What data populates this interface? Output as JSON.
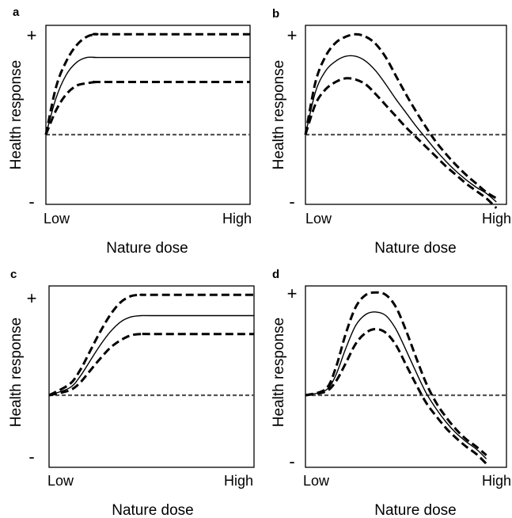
{
  "chart_data": [
    {
      "panel": "a",
      "type": "line",
      "xlabel": "Nature dose",
      "ylabel": "Health response",
      "x_tick_labels": [
        "Low",
        "High"
      ],
      "y_tick_labels": [
        "+",
        "-"
      ],
      "xlim": [
        0,
        1
      ],
      "ylim": [
        -1,
        1
      ],
      "baseline": 0,
      "series": [
        {
          "style": "dashed",
          "x": [
            0,
            0.05,
            0.1,
            0.15,
            0.2,
            0.25,
            0.3,
            1
          ],
          "y": [
            0,
            0.39,
            0.6,
            0.73,
            0.8,
            0.82,
            0.82,
            0.82
          ]
        },
        {
          "style": "solid",
          "x": [
            0,
            0.05,
            0.1,
            0.15,
            0.2,
            0.25,
            0.3,
            1
          ],
          "y": [
            0,
            0.3,
            0.49,
            0.59,
            0.63,
            0.63,
            0.63,
            0.63
          ]
        },
        {
          "style": "dashed",
          "x": [
            0,
            0.05,
            0.1,
            0.15,
            0.2,
            0.25,
            0.3,
            1
          ],
          "y": [
            0,
            0.2,
            0.33,
            0.4,
            0.42,
            0.43,
            0.43,
            0.43
          ]
        }
      ]
    },
    {
      "panel": "b",
      "type": "line",
      "xlabel": "Nature dose",
      "ylabel": "Health response",
      "x_tick_labels": [
        "Low",
        "High"
      ],
      "y_tick_labels": [
        "+",
        "-"
      ],
      "xlim": [
        0,
        1
      ],
      "ylim": [
        -1,
        1
      ],
      "baseline": 0,
      "series": [
        {
          "style": "dashed",
          "x": [
            0,
            0.05,
            0.1,
            0.15,
            0.2,
            0.25,
            0.3,
            0.35,
            0.4,
            0.45,
            0.5,
            0.55,
            0.6,
            0.65,
            0.7,
            0.75,
            0.8,
            0.85,
            0.9,
            0.95
          ],
          "y": [
            0,
            0.43,
            0.64,
            0.75,
            0.8,
            0.82,
            0.8,
            0.74,
            0.63,
            0.48,
            0.33,
            0.19,
            0.06,
            -0.06,
            -0.16,
            -0.25,
            -0.33,
            -0.4,
            -0.47,
            -0.52
          ]
        },
        {
          "style": "solid",
          "x": [
            0,
            0.05,
            0.1,
            0.15,
            0.2,
            0.25,
            0.3,
            0.35,
            0.4,
            0.45,
            0.5,
            0.55,
            0.6,
            0.65,
            0.7,
            0.75,
            0.8,
            0.85,
            0.9,
            0.95
          ],
          "y": [
            0,
            0.35,
            0.52,
            0.6,
            0.64,
            0.64,
            0.6,
            0.52,
            0.41,
            0.29,
            0.18,
            0.07,
            -0.03,
            -0.13,
            -0.22,
            -0.3,
            -0.37,
            -0.43,
            -0.48,
            -0.55
          ]
        },
        {
          "style": "dashed",
          "x": [
            0,
            0.05,
            0.1,
            0.15,
            0.2,
            0.25,
            0.3,
            0.35,
            0.4,
            0.45,
            0.5,
            0.55,
            0.6,
            0.65,
            0.7,
            0.75,
            0.8,
            0.85,
            0.9,
            0.95
          ],
          "y": [
            0,
            0.25,
            0.37,
            0.43,
            0.46,
            0.45,
            0.41,
            0.33,
            0.24,
            0.15,
            0.06,
            -0.02,
            -0.1,
            -0.18,
            -0.26,
            -0.33,
            -0.4,
            -0.46,
            -0.52,
            -0.6
          ]
        }
      ]
    },
    {
      "panel": "c",
      "type": "line",
      "xlabel": "Nature dose",
      "ylabel": "Health response",
      "x_tick_labels": [
        "Low",
        "High"
      ],
      "y_tick_labels": [
        "+",
        "-"
      ],
      "xlim": [
        0,
        1
      ],
      "ylim": [
        -1,
        1
      ],
      "baseline": 0,
      "series": [
        {
          "style": "dashed",
          "x": [
            0,
            0.1,
            0.15,
            0.2,
            0.25,
            0.3,
            0.35,
            0.4,
            0.45,
            0.5,
            1
          ],
          "y": [
            0,
            0.09,
            0.2,
            0.36,
            0.52,
            0.66,
            0.76,
            0.81,
            0.82,
            0.82,
            0.82
          ]
        },
        {
          "style": "solid",
          "x": [
            0,
            0.1,
            0.15,
            0.2,
            0.25,
            0.3,
            0.35,
            0.4,
            0.45,
            0.5,
            1
          ],
          "y": [
            0,
            0.06,
            0.15,
            0.28,
            0.41,
            0.52,
            0.6,
            0.64,
            0.65,
            0.65,
            0.65
          ]
        },
        {
          "style": "dashed",
          "x": [
            0,
            0.1,
            0.15,
            0.2,
            0.25,
            0.3,
            0.35,
            0.4,
            0.45,
            0.5,
            1
          ],
          "y": [
            0,
            0.04,
            0.1,
            0.2,
            0.3,
            0.39,
            0.45,
            0.49,
            0.5,
            0.5,
            0.5
          ]
        }
      ]
    },
    {
      "panel": "d",
      "type": "line",
      "xlabel": "Nature dose",
      "ylabel": "Health response",
      "x_tick_labels": [
        "Low",
        "High"
      ],
      "y_tick_labels": [
        "+",
        "-"
      ],
      "xlim": [
        0,
        1
      ],
      "ylim": [
        -1,
        1
      ],
      "baseline": 0,
      "series": [
        {
          "style": "dashed",
          "x": [
            0,
            0.1,
            0.15,
            0.2,
            0.25,
            0.3,
            0.35,
            0.4,
            0.45,
            0.5,
            0.55,
            0.6,
            0.65,
            0.7,
            0.75,
            0.8,
            0.85,
            0.9
          ],
          "y": [
            0,
            0.05,
            0.22,
            0.5,
            0.72,
            0.82,
            0.84,
            0.82,
            0.72,
            0.53,
            0.31,
            0.1,
            -0.06,
            -0.18,
            -0.28,
            -0.36,
            -0.42,
            -0.49
          ]
        },
        {
          "style": "solid",
          "x": [
            0,
            0.1,
            0.15,
            0.2,
            0.25,
            0.3,
            0.35,
            0.4,
            0.45,
            0.5,
            0.55,
            0.6,
            0.65,
            0.7,
            0.75,
            0.8,
            0.85,
            0.9
          ],
          "y": [
            0,
            0.04,
            0.16,
            0.38,
            0.57,
            0.66,
            0.68,
            0.65,
            0.54,
            0.37,
            0.19,
            0.02,
            -0.11,
            -0.22,
            -0.31,
            -0.38,
            -0.44,
            -0.52
          ]
        },
        {
          "style": "dashed",
          "x": [
            0,
            0.1,
            0.15,
            0.2,
            0.25,
            0.3,
            0.35,
            0.4,
            0.45,
            0.5,
            0.55,
            0.6,
            0.65,
            0.7,
            0.75,
            0.8,
            0.85,
            0.9
          ],
          "y": [
            0,
            0.03,
            0.11,
            0.26,
            0.42,
            0.51,
            0.54,
            0.51,
            0.41,
            0.25,
            0.09,
            -0.06,
            -0.17,
            -0.27,
            -0.35,
            -0.42,
            -0.48,
            -0.56
          ]
        }
      ]
    }
  ]
}
